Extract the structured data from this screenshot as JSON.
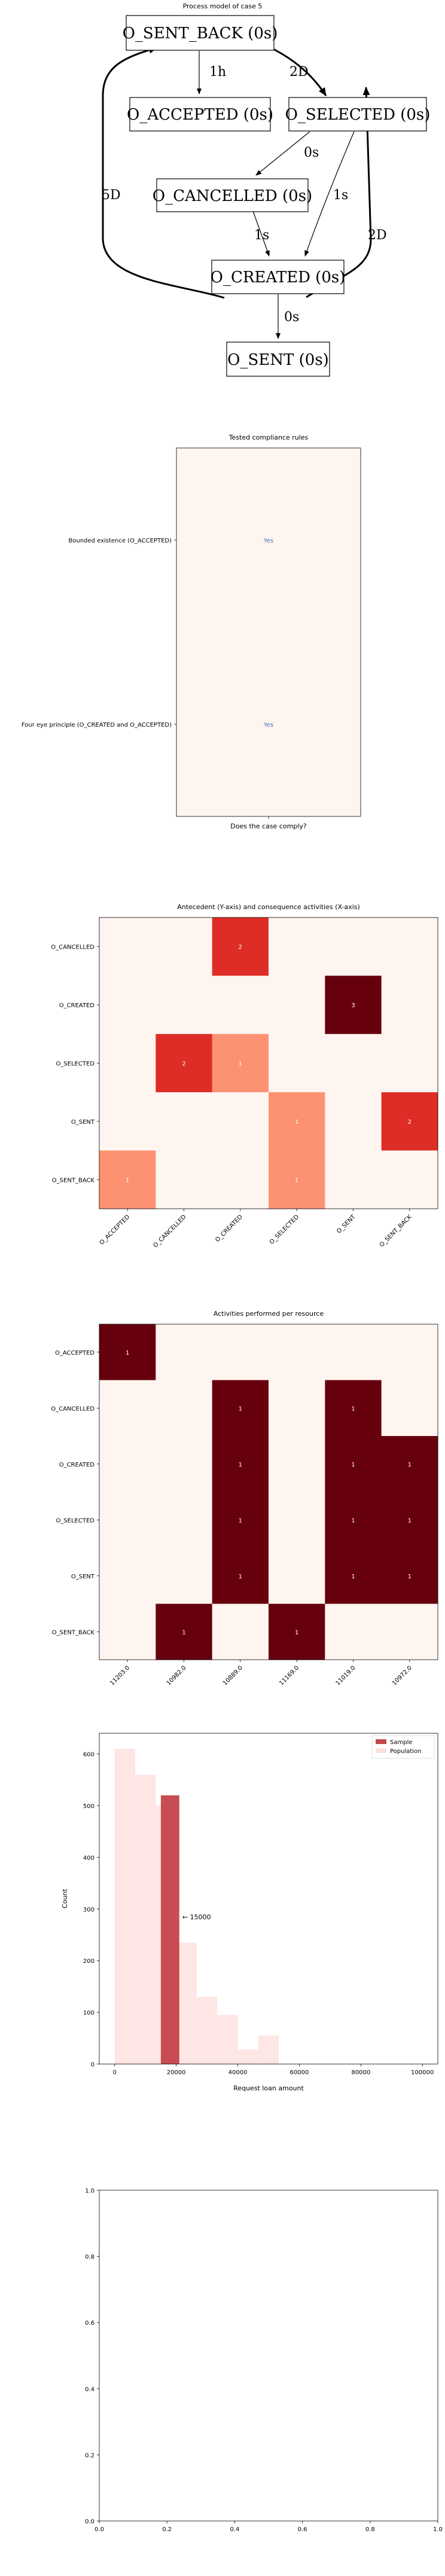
{
  "process_model": {
    "title": "Process model of case 5",
    "nodes": [
      {
        "id": "sent_back",
        "label": "O_SENT_BACK (0s)"
      },
      {
        "id": "accepted",
        "label": "O_ACCEPTED (0s)"
      },
      {
        "id": "selected",
        "label": "O_SELECTED (0s)"
      },
      {
        "id": "cancelled",
        "label": "O_CANCELLED (0s)"
      },
      {
        "id": "created",
        "label": "O_CREATED (0s)"
      },
      {
        "id": "sent",
        "label": "O_SENT (0s)"
      }
    ],
    "edges": [
      {
        "from": "sent_back",
        "to": "accepted",
        "label": "1h"
      },
      {
        "from": "sent_back",
        "to": "selected",
        "label": "2D"
      },
      {
        "from": "selected",
        "to": "cancelled",
        "label": "0s"
      },
      {
        "from": "selected",
        "to": "created",
        "label": "1s"
      },
      {
        "from": "cancelled",
        "to": "created",
        "label": "1s"
      },
      {
        "from": "created",
        "to": "sent",
        "label": "0s"
      },
      {
        "from": "sent",
        "to": "sent_back",
        "label": "5D"
      },
      {
        "from": "sent",
        "to": "selected",
        "label": "2D"
      }
    ]
  },
  "colors": {
    "cmap_low": "#fff5f0",
    "cmap_mid": "#fc9272",
    "cmap_high": "#de2d26",
    "cmap_max": "#67000d",
    "hist_sample": "#c4454b",
    "hist_population": "#fde0dd"
  },
  "chart_data": [
    {
      "type": "heatmap",
      "title": "Tested compliance rules",
      "xlabel": "Does the case comply?",
      "ylabel": "",
      "rows": [
        "Bounded existence (O_ACCEPTED)",
        "Four eye principle (O_CREATED and O_ACCEPTED)"
      ],
      "columns": [
        ""
      ],
      "values": [
        [
          0
        ],
        [
          0
        ]
      ],
      "cell_labels": [
        [
          "Yes"
        ],
        [
          "Yes"
        ]
      ]
    },
    {
      "type": "heatmap",
      "title": "Antecedent (Y-axis) and consequence activities (X-axis)",
      "xlabel": "",
      "ylabel": "",
      "rows": [
        "O_CANCELLED",
        "O_CREATED",
        "O_SELECTED",
        "O_SENT",
        "O_SENT_BACK"
      ],
      "columns": [
        "O_ACCEPTED",
        "O_CANCELLED",
        "O_CREATED",
        "O_SELECTED",
        "O_SENT",
        "O_SENT_BACK"
      ],
      "values": [
        [
          0,
          0,
          2,
          0,
          0,
          0
        ],
        [
          0,
          0,
          0,
          0,
          3,
          0
        ],
        [
          0,
          2,
          1,
          0,
          0,
          0
        ],
        [
          0,
          0,
          0,
          1,
          0,
          2
        ],
        [
          1,
          0,
          0,
          1,
          0,
          0
        ]
      ]
    },
    {
      "type": "heatmap",
      "title": "Activities performed per resource",
      "xlabel": "",
      "ylabel": "",
      "rows": [
        "O_ACCEPTED",
        "O_CANCELLED",
        "O_CREATED",
        "O_SELECTED",
        "O_SENT",
        "O_SENT_BACK"
      ],
      "columns": [
        "11203.0",
        "10982.0",
        "10889.0",
        "11169.0",
        "11019.0",
        "10972.0"
      ],
      "values": [
        [
          1,
          0,
          0,
          0,
          0,
          0
        ],
        [
          0,
          0,
          1,
          0,
          1,
          0
        ],
        [
          0,
          0,
          1,
          0,
          1,
          1
        ],
        [
          0,
          0,
          1,
          0,
          1,
          1
        ],
        [
          0,
          0,
          1,
          0,
          1,
          1
        ],
        [
          0,
          1,
          0,
          1,
          0,
          0
        ]
      ]
    },
    {
      "type": "bar",
      "subtype": "histogram",
      "title": "",
      "xlabel": "Request loan amount",
      "ylabel": "Count",
      "xlim": [
        -5000,
        105000
      ],
      "ylim": [
        0,
        640
      ],
      "xticks": [
        0,
        20000,
        40000,
        60000,
        80000,
        100000
      ],
      "yticks": [
        0,
        100,
        200,
        300,
        400,
        500,
        600
      ],
      "legend": [
        "Sample",
        "Population"
      ],
      "legend_position": "top-right",
      "annotation": "← 15000",
      "annotation_at": [
        22000,
        280
      ],
      "population": {
        "bin_edges": [
          0,
          6667,
          13333,
          20000,
          26667,
          33333,
          40000,
          46667,
          53333
        ],
        "counts": [
          610,
          560,
          500,
          235,
          130,
          95,
          28,
          55
        ]
      },
      "sample": {
        "bin_start": 15000,
        "bin_end": 21000,
        "count": 520
      }
    },
    {
      "type": "line",
      "title": "",
      "xlabel": "",
      "ylabel": "",
      "xlim": [
        0,
        1
      ],
      "ylim": [
        0,
        1
      ],
      "xticks": [
        "0.0",
        "0.2",
        "0.4",
        "0.6",
        "0.8",
        "1.0"
      ],
      "yticks": [
        "0.0",
        "0.2",
        "0.4",
        "0.6",
        "0.8",
        "1.0"
      ],
      "series": []
    }
  ]
}
